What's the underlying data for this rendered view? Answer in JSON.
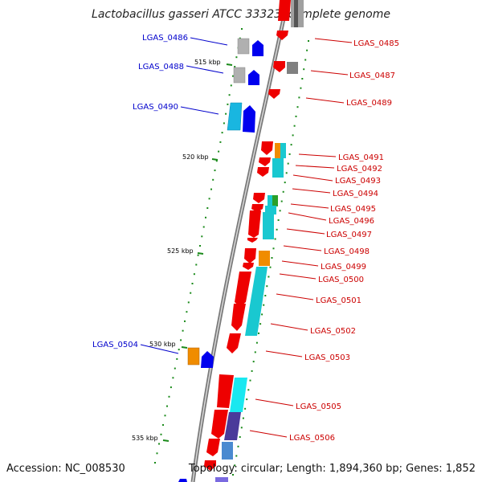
{
  "title": "Lactobacillus gasseri ATCC 33323, complete genome",
  "footer": {
    "accession": "Accession: NC_008530",
    "topology": "Topology: circular; Length: 1,894,360 bp; Genes: 1,852"
  },
  "colors": {
    "backbone": "#888888",
    "tick": "#1a8a1a",
    "forward_label": "#0000cc",
    "reverse_label": "#cc0000",
    "forward_gene": "#0000ee",
    "reverse_gene": "#ee0000"
  },
  "scale_labels": [
    "515 kbp",
    "520 kbp",
    "525 kbp",
    "530 kbp",
    "535 kbp"
  ],
  "forward_genes": [
    {
      "label": "LGAS_0486",
      "cog": "#b0b0b0"
    },
    {
      "label": "LGAS_0488",
      "cog": "#b0b0b0"
    },
    {
      "label": "LGAS_0490",
      "cog": "#19b6e0"
    },
    {
      "label": "LGAS_0504",
      "cog": "#f08c00"
    }
  ],
  "reverse_genes": [
    {
      "label": "LGAS_0485",
      "cog": "#a0a0a0"
    },
    {
      "label": "LGAS_0487",
      "cog": "#808080"
    },
    {
      "label": "LGAS_0489",
      "cog": ""
    },
    {
      "label": "LGAS_0491",
      "cog": "#f08c00"
    },
    {
      "label": "LGAS_0492",
      "cog": "#19c8d0"
    },
    {
      "label": "LGAS_0493",
      "cog": ""
    },
    {
      "label": "LGAS_0494",
      "cog": "#2aa02a"
    },
    {
      "label": "LGAS_0495",
      "cog": "#19c8d0"
    },
    {
      "label": "LGAS_0496",
      "cog": "#19c8d0"
    },
    {
      "label": "LGAS_0497",
      "cog": ""
    },
    {
      "label": "LGAS_0498",
      "cog": "#f08c00"
    },
    {
      "label": "LGAS_0499",
      "cog": ""
    },
    {
      "label": "LGAS_0500",
      "cog": "#19c8d0"
    },
    {
      "label": "LGAS_0501",
      "cog": "#19c8d0"
    },
    {
      "label": "LGAS_0502",
      "cog": ""
    },
    {
      "label": "LGAS_0503",
      "cog": ""
    },
    {
      "label": "LGAS_0505",
      "cog": "#19e8f0"
    },
    {
      "label": "LGAS_0506",
      "cog": "#4a3a9a"
    }
  ]
}
